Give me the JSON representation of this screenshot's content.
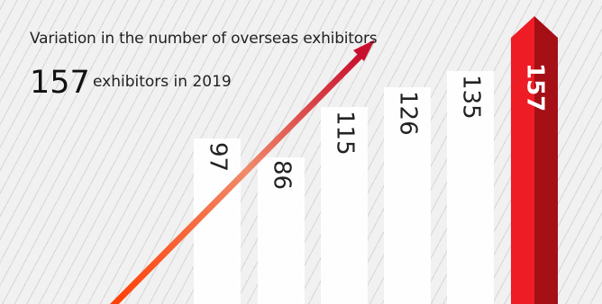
{
  "header": {
    "title": "Variation in the number of overseas exhibitors",
    "highlight_number": "157",
    "highlight_text": "exhibitors in 2019"
  },
  "colors": {
    "bar": "#ffffff",
    "highlight_light": "#ee1c25",
    "highlight_dark": "#a50f16",
    "arrow_start": "#ff3c00",
    "arrow_end": "#c8102e",
    "text": "#222222"
  },
  "chart_data": {
    "type": "bar",
    "title": "Variation in the number of overseas exhibitors",
    "categories": [
      "",
      "",
      "",
      "",
      "",
      ""
    ],
    "values": [
      97,
      86,
      115,
      126,
      135,
      157
    ],
    "labels": [
      "97",
      "86",
      "115",
      "126",
      "135",
      "157"
    ],
    "highlight_index": 5,
    "value_label_orientation": "rotated-vertical",
    "trend_arrow": true,
    "grid": false,
    "legend": "none"
  }
}
